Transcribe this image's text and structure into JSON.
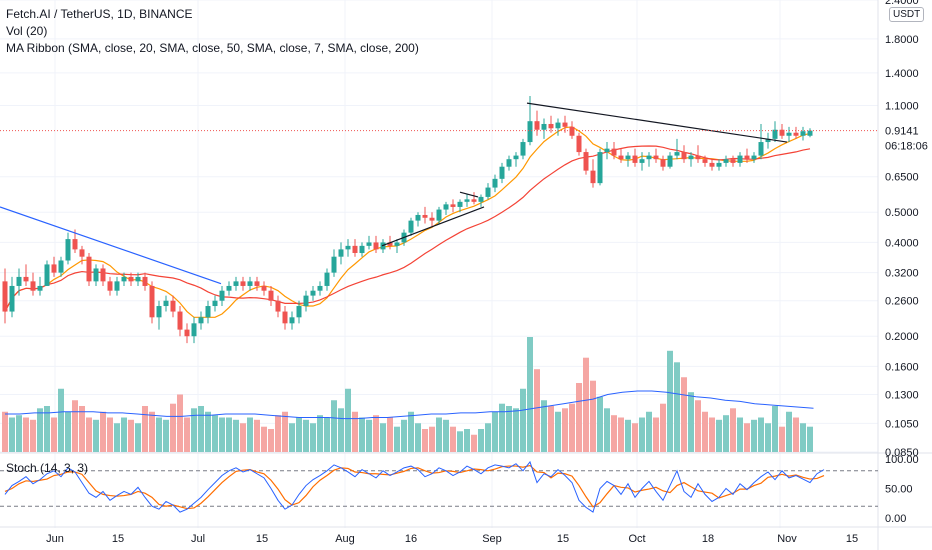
{
  "legend": {
    "symbol": "Fetch.AI / TetherUS, 1D, BINANCE",
    "vol": "Vol (20)",
    "ribbon": "MA Ribbon (SMA, close, 20, SMA, close, 50, SMA, close, 7, SMA, close, 200)"
  },
  "stoch_label": "Stoch (14, 3, 3)",
  "currency_badge": "USDT",
  "last_price": "0.9141",
  "countdown": "06:18:06",
  "colors": {
    "up": "#26a69a",
    "down": "#ef5350",
    "vol_up": "#80cbc4",
    "vol_down": "#f5a6a3",
    "ma_fast": "#ff9800",
    "ma_slow": "#f44336",
    "vol_ma": "#2962ff",
    "trend_blue": "#2962ff",
    "trend_black": "#131722",
    "stoch_k": "#2962ff",
    "stoch_d": "#ff6d00",
    "price_line": "#ef5350"
  },
  "price_axis": [
    "2.4000",
    "1.8000",
    "1.4000",
    "1.1000",
    "0.6500",
    "0.5000",
    "0.4000",
    "0.3200",
    "0.2600",
    "0.2000",
    "0.1600",
    "0.1300",
    "0.1050",
    "0.0850"
  ],
  "stoch_axis": [
    "100.00",
    "50.00",
    "0.00"
  ],
  "time_axis": [
    "Jun",
    "15",
    "Jul",
    "15",
    "Aug",
    "16",
    "Sep",
    "15",
    "Oct",
    "18",
    "Nov",
    "15"
  ],
  "chart_data": {
    "type": "candlestick",
    "scale": "log",
    "price_range": [
      0.085,
      2.4
    ],
    "stoch_range": [
      0,
      100
    ],
    "candles_ohlc": [
      [
        0.3,
        0.33,
        0.22,
        0.24
      ],
      [
        0.24,
        0.31,
        0.23,
        0.29
      ],
      [
        0.29,
        0.33,
        0.27,
        0.31
      ],
      [
        0.31,
        0.34,
        0.29,
        0.3
      ],
      [
        0.3,
        0.32,
        0.27,
        0.28
      ],
      [
        0.28,
        0.31,
        0.27,
        0.29
      ],
      [
        0.29,
        0.35,
        0.29,
        0.34
      ],
      [
        0.34,
        0.36,
        0.31,
        0.32
      ],
      [
        0.32,
        0.36,
        0.31,
        0.35
      ],
      [
        0.35,
        0.43,
        0.34,
        0.41
      ],
      [
        0.41,
        0.44,
        0.37,
        0.38
      ],
      [
        0.38,
        0.39,
        0.34,
        0.36
      ],
      [
        0.36,
        0.37,
        0.29,
        0.3
      ],
      [
        0.3,
        0.34,
        0.29,
        0.33
      ],
      [
        0.33,
        0.34,
        0.29,
        0.3
      ],
      [
        0.3,
        0.31,
        0.27,
        0.28
      ],
      [
        0.28,
        0.31,
        0.27,
        0.3
      ],
      [
        0.3,
        0.32,
        0.29,
        0.31
      ],
      [
        0.31,
        0.32,
        0.29,
        0.3
      ],
      [
        0.3,
        0.32,
        0.29,
        0.31
      ],
      [
        0.31,
        0.32,
        0.28,
        0.29
      ],
      [
        0.29,
        0.3,
        0.22,
        0.23
      ],
      [
        0.23,
        0.26,
        0.21,
        0.25
      ],
      [
        0.25,
        0.27,
        0.24,
        0.26
      ],
      [
        0.26,
        0.27,
        0.23,
        0.24
      ],
      [
        0.24,
        0.25,
        0.2,
        0.21
      ],
      [
        0.21,
        0.22,
        0.19,
        0.2
      ],
      [
        0.2,
        0.23,
        0.19,
        0.22
      ],
      [
        0.22,
        0.24,
        0.21,
        0.23
      ],
      [
        0.23,
        0.26,
        0.22,
        0.25
      ],
      [
        0.25,
        0.27,
        0.24,
        0.26
      ],
      [
        0.26,
        0.29,
        0.25,
        0.28
      ],
      [
        0.28,
        0.3,
        0.27,
        0.29
      ],
      [
        0.29,
        0.31,
        0.28,
        0.3
      ],
      [
        0.3,
        0.31,
        0.28,
        0.29
      ],
      [
        0.29,
        0.31,
        0.28,
        0.3
      ],
      [
        0.3,
        0.31,
        0.28,
        0.29
      ],
      [
        0.29,
        0.3,
        0.27,
        0.28
      ],
      [
        0.28,
        0.29,
        0.25,
        0.26
      ],
      [
        0.26,
        0.27,
        0.23,
        0.24
      ],
      [
        0.24,
        0.25,
        0.21,
        0.22
      ],
      [
        0.22,
        0.24,
        0.21,
        0.23
      ],
      [
        0.23,
        0.26,
        0.22,
        0.25
      ],
      [
        0.25,
        0.28,
        0.24,
        0.27
      ],
      [
        0.27,
        0.29,
        0.26,
        0.28
      ],
      [
        0.28,
        0.3,
        0.27,
        0.29
      ],
      [
        0.29,
        0.33,
        0.28,
        0.32
      ],
      [
        0.32,
        0.38,
        0.31,
        0.36
      ],
      [
        0.36,
        0.4,
        0.34,
        0.38
      ],
      [
        0.38,
        0.41,
        0.36,
        0.39
      ],
      [
        0.39,
        0.41,
        0.36,
        0.37
      ],
      [
        0.37,
        0.4,
        0.36,
        0.39
      ],
      [
        0.39,
        0.42,
        0.38,
        0.4
      ],
      [
        0.4,
        0.42,
        0.37,
        0.38
      ],
      [
        0.38,
        0.41,
        0.37,
        0.4
      ],
      [
        0.4,
        0.42,
        0.38,
        0.39
      ],
      [
        0.39,
        0.41,
        0.37,
        0.4
      ],
      [
        0.4,
        0.44,
        0.39,
        0.43
      ],
      [
        0.43,
        0.48,
        0.42,
        0.47
      ],
      [
        0.47,
        0.5,
        0.45,
        0.49
      ],
      [
        0.49,
        0.52,
        0.46,
        0.48
      ],
      [
        0.48,
        0.5,
        0.45,
        0.47
      ],
      [
        0.47,
        0.52,
        0.46,
        0.51
      ],
      [
        0.51,
        0.54,
        0.49,
        0.53
      ],
      [
        0.53,
        0.55,
        0.5,
        0.52
      ],
      [
        0.52,
        0.55,
        0.5,
        0.54
      ],
      [
        0.54,
        0.57,
        0.52,
        0.55
      ],
      [
        0.55,
        0.58,
        0.53,
        0.54
      ],
      [
        0.54,
        0.57,
        0.52,
        0.56
      ],
      [
        0.56,
        0.62,
        0.55,
        0.6
      ],
      [
        0.6,
        0.66,
        0.58,
        0.64
      ],
      [
        0.64,
        0.72,
        0.62,
        0.7
      ],
      [
        0.7,
        0.76,
        0.68,
        0.74
      ],
      [
        0.74,
        0.78,
        0.7,
        0.76
      ],
      [
        0.76,
        0.86,
        0.74,
        0.84
      ],
      [
        0.84,
        1.18,
        0.82,
        0.98
      ],
      [
        0.98,
        1.06,
        0.88,
        0.92
      ],
      [
        0.92,
        1.0,
        0.86,
        0.96
      ],
      [
        0.96,
        1.02,
        0.9,
        0.93
      ],
      [
        0.93,
        1.0,
        0.88,
        0.97
      ],
      [
        0.97,
        1.02,
        0.9,
        0.94
      ],
      [
        0.94,
        0.98,
        0.86,
        0.88
      ],
      [
        0.88,
        0.9,
        0.76,
        0.78
      ],
      [
        0.78,
        0.8,
        0.66,
        0.68
      ],
      [
        0.68,
        0.74,
        0.6,
        0.62
      ],
      [
        0.62,
        0.8,
        0.61,
        0.78
      ],
      [
        0.78,
        0.84,
        0.74,
        0.8
      ],
      [
        0.8,
        0.84,
        0.74,
        0.76
      ],
      [
        0.76,
        0.8,
        0.72,
        0.74
      ],
      [
        0.74,
        0.78,
        0.7,
        0.76
      ],
      [
        0.76,
        0.8,
        0.7,
        0.72
      ],
      [
        0.72,
        0.78,
        0.68,
        0.74
      ],
      [
        0.74,
        0.78,
        0.7,
        0.76
      ],
      [
        0.76,
        0.8,
        0.72,
        0.74
      ],
      [
        0.74,
        0.76,
        0.68,
        0.7
      ],
      [
        0.7,
        0.78,
        0.69,
        0.76
      ],
      [
        0.76,
        0.86,
        0.74,
        0.78
      ],
      [
        0.78,
        0.82,
        0.72,
        0.74
      ],
      [
        0.74,
        0.78,
        0.7,
        0.76
      ],
      [
        0.76,
        0.82,
        0.72,
        0.74
      ],
      [
        0.74,
        0.76,
        0.7,
        0.72
      ],
      [
        0.72,
        0.74,
        0.68,
        0.7
      ],
      [
        0.7,
        0.74,
        0.68,
        0.72
      ],
      [
        0.72,
        0.76,
        0.7,
        0.74
      ],
      [
        0.74,
        0.76,
        0.7,
        0.72
      ],
      [
        0.72,
        0.78,
        0.7,
        0.76
      ],
      [
        0.76,
        0.8,
        0.72,
        0.74
      ],
      [
        0.74,
        0.78,
        0.72,
        0.76
      ],
      [
        0.76,
        0.96,
        0.74,
        0.84
      ],
      [
        0.84,
        0.9,
        0.8,
        0.86
      ],
      [
        0.86,
        0.98,
        0.84,
        0.92
      ],
      [
        0.92,
        0.96,
        0.86,
        0.88
      ],
      [
        0.88,
        0.94,
        0.84,
        0.9
      ],
      [
        0.9,
        0.94,
        0.86,
        0.88
      ],
      [
        0.88,
        0.94,
        0.85,
        0.91
      ],
      [
        0.88,
        0.93,
        0.87,
        0.9141
      ]
    ],
    "volume_relative": [
      0.35,
      0.3,
      0.32,
      0.3,
      0.28,
      0.38,
      0.4,
      0.3,
      0.55,
      0.35,
      0.45,
      0.4,
      0.3,
      0.28,
      0.35,
      0.3,
      0.25,
      0.3,
      0.28,
      0.25,
      0.4,
      0.35,
      0.3,
      0.28,
      0.42,
      0.5,
      0.3,
      0.38,
      0.4,
      0.35,
      0.32,
      0.3,
      0.3,
      0.28,
      0.25,
      0.3,
      0.28,
      0.22,
      0.2,
      0.32,
      0.35,
      0.25,
      0.3,
      0.28,
      0.25,
      0.32,
      0.3,
      0.45,
      0.38,
      0.55,
      0.35,
      0.3,
      0.28,
      0.32,
      0.25,
      0.3,
      0.22,
      0.28,
      0.35,
      0.25,
      0.2,
      0.22,
      0.3,
      0.28,
      0.22,
      0.18,
      0.2,
      0.15,
      0.2,
      0.25,
      0.35,
      0.42,
      0.4,
      0.38,
      0.55,
      1.0,
      0.72,
      0.45,
      0.4,
      0.35,
      0.38,
      0.42,
      0.6,
      0.82,
      0.62,
      0.48,
      0.38,
      0.32,
      0.3,
      0.28,
      0.25,
      0.3,
      0.35,
      0.3,
      0.42,
      0.88,
      0.78,
      0.65,
      0.52,
      0.45,
      0.35,
      0.3,
      0.28,
      0.32,
      0.38,
      0.3,
      0.25,
      0.28,
      0.3,
      0.25,
      0.4,
      0.22,
      0.35,
      0.3,
      0.25,
      0.22,
      0.2,
      0.18
    ],
    "vol_ma_relative": [
      0.33,
      0.33,
      0.34,
      0.34,
      0.35,
      0.35,
      0.35,
      0.34,
      0.34,
      0.33,
      0.32,
      0.31,
      0.31,
      0.32,
      0.32,
      0.33,
      0.33,
      0.33,
      0.32,
      0.31,
      0.3,
      0.3,
      0.3,
      0.29,
      0.29,
      0.3,
      0.3,
      0.31,
      0.32,
      0.33,
      0.33,
      0.34,
      0.34,
      0.35,
      0.35,
      0.36,
      0.38,
      0.4,
      0.42,
      0.44,
      0.46,
      0.5,
      0.52,
      0.53,
      0.53,
      0.52,
      0.5,
      0.48,
      0.47,
      0.45,
      0.44,
      0.42,
      0.41,
      0.4,
      0.39,
      0.38
    ],
    "stoch_k": [
      40,
      55,
      62,
      70,
      58,
      65,
      75,
      80,
      70,
      85,
      78,
      60,
      42,
      35,
      45,
      30,
      38,
      45,
      40,
      52,
      35,
      20,
      15,
      28,
      22,
      10,
      15,
      25,
      35,
      48,
      60,
      72,
      80,
      85,
      78,
      82,
      75,
      68,
      50,
      30,
      15,
      22,
      40,
      55,
      65,
      72,
      80,
      90,
      85,
      78,
      70,
      82,
      75,
      68,
      80,
      72,
      78,
      85,
      88,
      82,
      70,
      75,
      85,
      80,
      72,
      78,
      88,
      82,
      75,
      85,
      90,
      88,
      85,
      92,
      80,
      95,
      60,
      75,
      70,
      82,
      72,
      60,
      30,
      18,
      10,
      50,
      62,
      55,
      40,
      58,
      35,
      50,
      62,
      45,
      30,
      55,
      80,
      45,
      35,
      58,
      40,
      28,
      35,
      50,
      40,
      58,
      48,
      60,
      70,
      78,
      65,
      80,
      68,
      72,
      66,
      60,
      75,
      82
    ],
    "stoch_d": [
      45,
      50,
      58,
      63,
      62,
      64,
      66,
      72,
      74,
      78,
      78,
      74,
      60,
      46,
      40,
      38,
      37,
      38,
      40,
      45,
      42,
      35,
      23,
      20,
      22,
      19,
      16,
      17,
      25,
      36,
      48,
      60,
      70,
      79,
      81,
      82,
      78,
      75,
      64,
      49,
      31,
      22,
      26,
      38,
      53,
      64,
      72,
      81,
      85,
      84,
      78,
      77,
      75,
      75,
      74,
      73,
      76,
      79,
      84,
      85,
      80,
      76,
      77,
      80,
      79,
      77,
      80,
      83,
      82,
      80,
      83,
      87,
      88,
      88,
      86,
      89,
      78,
      77,
      68,
      76,
      75,
      71,
      55,
      36,
      19,
      26,
      41,
      55,
      52,
      51,
      44,
      47,
      49,
      52,
      46,
      43,
      55,
      60,
      53,
      46,
      44,
      42,
      34,
      38,
      42,
      49,
      49,
      55,
      59,
      69,
      71,
      74,
      71,
      73,
      69,
      66,
      67,
      72
    ]
  }
}
